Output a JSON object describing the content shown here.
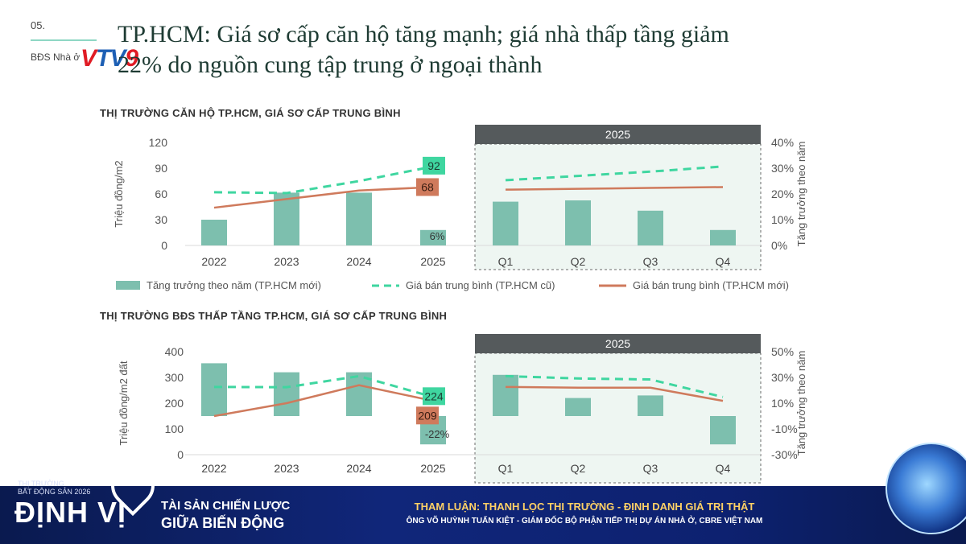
{
  "header": {
    "slide_num": "05.",
    "section": "BĐS Nhà ở",
    "logo_a": "V",
    "logo_b": "TV",
    "logo_c": "9",
    "title_line1": "TP.HCM: Giá sơ cấp căn hộ tăng mạnh; giá nhà thấp tầng giảm",
    "title_line2": "22% do nguồn cung tập trung ở ngoại thành"
  },
  "legend": {
    "bar": "Tăng trưởng theo năm (TP.HCM mới)",
    "dashed": "Giá bán trung bình (TP.HCM cũ)",
    "solid": "Giá bán trung bình (TP.HCM mới)"
  },
  "chart_data": [
    {
      "type": "bar",
      "title": "THỊ TRƯỜNG CĂN HỘ TP.HCM, GIÁ SƠ CẤP TRUNG BÌNH",
      "highlight_label": "2025",
      "categories": [
        "2022",
        "2023",
        "2024",
        "2025",
        "Q1",
        "Q2",
        "Q3",
        "Q4"
      ],
      "ylabel": "Triệu đồng/m2",
      "ylabel_right": "Tăng trưởng theo năm",
      "ylim": [
        0,
        120
      ],
      "yticks": [
        "120",
        "90",
        "60",
        "30",
        "0"
      ],
      "ylim_right": [
        0,
        40
      ],
      "yticks_right": [
        "40%",
        "30%",
        "20%",
        "10%",
        "0%"
      ],
      "series": [
        {
          "name": "Tăng trưởng theo năm (TP.HCM mới)",
          "kind": "bar",
          "axis": "right",
          "unit": "%",
          "values": [
            10,
            20.5,
            20.5,
            6,
            17,
            17.5,
            13.5,
            6
          ]
        },
        {
          "name": "Giá bán trung bình (TP.HCM cũ)",
          "kind": "dashed",
          "axis": "left",
          "values": [
            null,
            null,
            null,
            null,
            76,
            81,
            86,
            92
          ],
          "values_annual": [
            62,
            61,
            75,
            92
          ]
        },
        {
          "name": "Giá bán trung bình (TP.HCM mới)",
          "kind": "solid",
          "axis": "left",
          "values": [
            null,
            null,
            null,
            null,
            65,
            66,
            67,
            68
          ],
          "values_annual": [
            44,
            54,
            64,
            68
          ]
        }
      ],
      "annotations": {
        "dashed_end": "92",
        "solid_end": "68",
        "bar_2025": "6%"
      }
    },
    {
      "type": "bar",
      "title": "THỊ TRƯỜNG BĐS THẤP TẦNG TP.HCM, GIÁ SƠ CẤP TRUNG BÌNH",
      "highlight_label": "2025",
      "categories": [
        "2022",
        "2023",
        "2024",
        "2025",
        "Q1",
        "Q2",
        "Q3",
        "Q4"
      ],
      "ylabel": "Triệu đồng/m2 đất",
      "ylabel_right": "Tăng trưởng theo năm",
      "ylim": [
        0,
        400
      ],
      "yticks": [
        "400",
        "300",
        "200",
        "100",
        "0"
      ],
      "ylim_right": [
        -30,
        50
      ],
      "yticks_right": [
        "50%",
        "30%",
        "10%",
        "-10%",
        "-30%"
      ],
      "series": [
        {
          "name": "Tăng trưởng theo năm (TP.HCM mới)",
          "kind": "bar",
          "axis": "right",
          "unit": "%",
          "values": [
            41,
            34,
            34,
            -22,
            32,
            14,
            16,
            -22
          ]
        },
        {
          "name": "Giá bán trung bình (TP.HCM cũ)",
          "kind": "dashed",
          "axis": "left",
          "values": [
            null,
            null,
            null,
            null,
            305,
            296,
            292,
            224
          ],
          "values_annual": [
            263,
            262,
            305,
            224
          ]
        },
        {
          "name": "Giá bán trung bình (TP.HCM mới)",
          "kind": "solid",
          "axis": "left",
          "values": [
            null,
            null,
            null,
            null,
            263,
            260,
            260,
            209
          ],
          "values_annual": [
            150,
            200,
            270,
            209
          ]
        }
      ],
      "annotations": {
        "dashed_end": "224",
        "solid_end": "209",
        "bar_2025": "-22%"
      }
    }
  ],
  "banner": {
    "small": "THỊ TRƯỜNG\nBẤT ĐỘNG SẢN 2026",
    "brand": "ĐỊNH VỊ",
    "tag1": "TÀI SẢN CHIẾN LƯỢC",
    "tag2": "GIỮA BIẾN ĐỘNG",
    "headline": "THAM LUẬN: THANH LỌC THỊ TRƯỜNG - ĐỊNH DANH GIÁ TRỊ THẬT",
    "subline": "ÔNG VÕ HUỲNH TUẤN KIỆT - GIÁM ĐỐC BỘ PHẬN TIẾP THỊ DỰ ÁN NHÀ Ở, CBRE VIỆT NAM"
  },
  "colors": {
    "bar": "#7dbfae",
    "dashed": "#3fd6a0",
    "solid": "#cf7a5c",
    "band": "#555a5c",
    "highlight_bg": "#eef6f2"
  }
}
